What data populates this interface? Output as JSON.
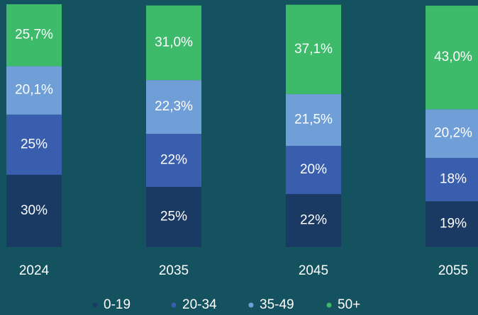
{
  "chart_data": {
    "type": "stacked-bar",
    "categories": [
      "2024",
      "2035",
      "2045",
      "2055"
    ],
    "series": [
      {
        "name": "0-19",
        "color": "#1b3a63",
        "values": [
          30,
          25,
          22,
          19
        ],
        "value_labels": [
          "30%",
          "25%",
          "22%",
          "19%"
        ]
      },
      {
        "name": "20-34",
        "color": "#3a5eae",
        "values": [
          25,
          22,
          20,
          18
        ],
        "value_labels": [
          "25%",
          "22%",
          "20%",
          "18%"
        ]
      },
      {
        "name": "35-49",
        "color": "#6f9fd6",
        "values": [
          20.1,
          22.3,
          21.5,
          20.2
        ],
        "value_labels": [
          "20,1%",
          "22,3%",
          "21,5%",
          "20,2%"
        ]
      },
      {
        "name": "50+",
        "color": "#3dba6a",
        "values": [
          25.7,
          31.0,
          37.1,
          43.0
        ],
        "value_labels": [
          "25,7%",
          "31,0%",
          "37,1%",
          "43,0%"
        ]
      }
    ]
  }
}
